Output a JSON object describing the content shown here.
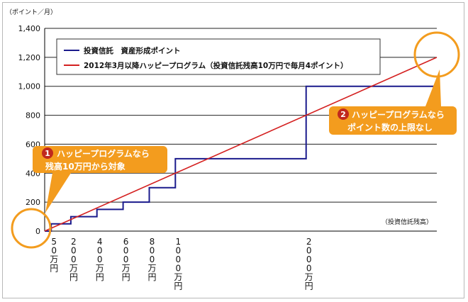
{
  "chart_data": {
    "type": "line",
    "ylabel": "（ポイント／月）",
    "xlabel": "（投資信託残高）",
    "ylim": [
      0,
      1400
    ],
    "y_ticks": [
      "0",
      "200",
      "400",
      "600",
      "800",
      "1,000",
      "1,200",
      "1,400"
    ],
    "y_tick_values": [
      0,
      200,
      400,
      600,
      800,
      1000,
      1200,
      1400
    ],
    "x_ticks": [
      {
        "value": 50,
        "label": "50万円"
      },
      {
        "value": 200,
        "label": "200万円"
      },
      {
        "value": 400,
        "label": "400万円"
      },
      {
        "value": 600,
        "label": "600万円"
      },
      {
        "value": 800,
        "label": "800万円"
      },
      {
        "value": 1000,
        "label": "1000万円"
      },
      {
        "value": 2000,
        "label": "2000万円"
      }
    ],
    "xlim": [
      0,
      3000
    ],
    "legend_position": "top-left",
    "grid": true,
    "series": [
      {
        "name": "投資信託　資産形成ポイント",
        "color": "#1a1a8c",
        "x": [
          0,
          50,
          50,
          200,
          200,
          400,
          400,
          600,
          600,
          800,
          800,
          1000,
          1000,
          2000,
          2000,
          3000
        ],
        "y": [
          0,
          0,
          50,
          50,
          100,
          100,
          150,
          150,
          200,
          200,
          300,
          300,
          500,
          500,
          1000,
          1000
        ]
      },
      {
        "name": "2012年3月以降ハッピープログラム（投資信託残高10万円で毎月4ポイント）",
        "color": "#d42020",
        "x": [
          0,
          3000
        ],
        "y": [
          0,
          1200
        ]
      }
    ],
    "annotations": [
      {
        "number": "1",
        "text": [
          "ハッピープログラムなら",
          "残高10万円から対象"
        ]
      },
      {
        "number": "2",
        "text": [
          "ハッピープログラムなら",
          "ポイント数の上限なし"
        ]
      }
    ]
  },
  "colors": {
    "callout": "#f39c1e",
    "badge": "#c0281e",
    "circle": "#f39c1e"
  }
}
